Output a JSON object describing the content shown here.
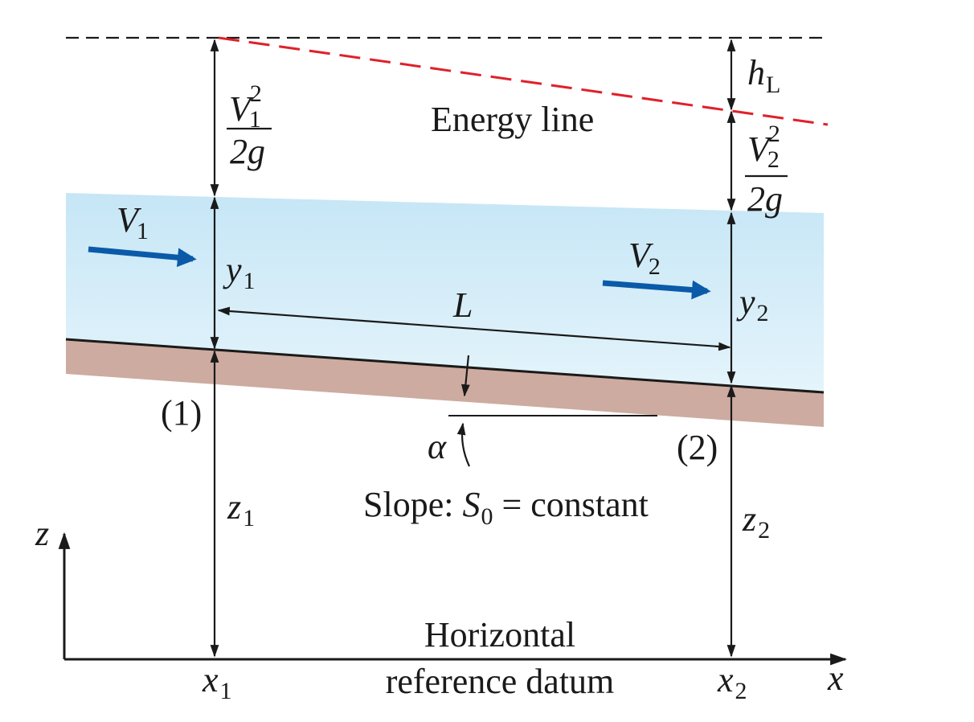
{
  "labels": {
    "energy_line": "Energy line",
    "head_loss_h": "h",
    "head_loss_sub": "L",
    "v1_num": "V",
    "v1_num_sub": "1",
    "v1_num_sup": "2",
    "v1_den": "2g",
    "v2_num": "V",
    "v2_num_sub": "2",
    "v2_num_sup": "2",
    "v2_den": "2g",
    "vel1": "V",
    "vel1_sub": "1",
    "vel2": "V",
    "vel2_sub": "2",
    "depth1": "y",
    "depth1_sub": "1",
    "depth2": "y",
    "depth2_sub": "2",
    "length": "L",
    "section1": "(1)",
    "section2": "(2)",
    "angle": "α",
    "slope_prefix": "Slope: ",
    "slope_symbol": "S",
    "slope_sub": "0",
    "slope_suffix": " = constant",
    "elev1": "z",
    "elev1_sub": "1",
    "elev2": "z",
    "elev2_sub": "2",
    "z_axis": "z",
    "x_axis": "x",
    "x1": "x",
    "x1_sub": "1",
    "x2": "x",
    "x2_sub": "2",
    "datum_line1": "Horizontal",
    "datum_line2": "reference datum"
  },
  "colors": {
    "water_top": "#c6e6f6",
    "water_bottom": "#e4f4fb",
    "channel_bed": "#cdaba0",
    "energy_line": "#e0202a",
    "velocity_arrow": "#0a5aa8",
    "ink": "#1a1a1a"
  }
}
